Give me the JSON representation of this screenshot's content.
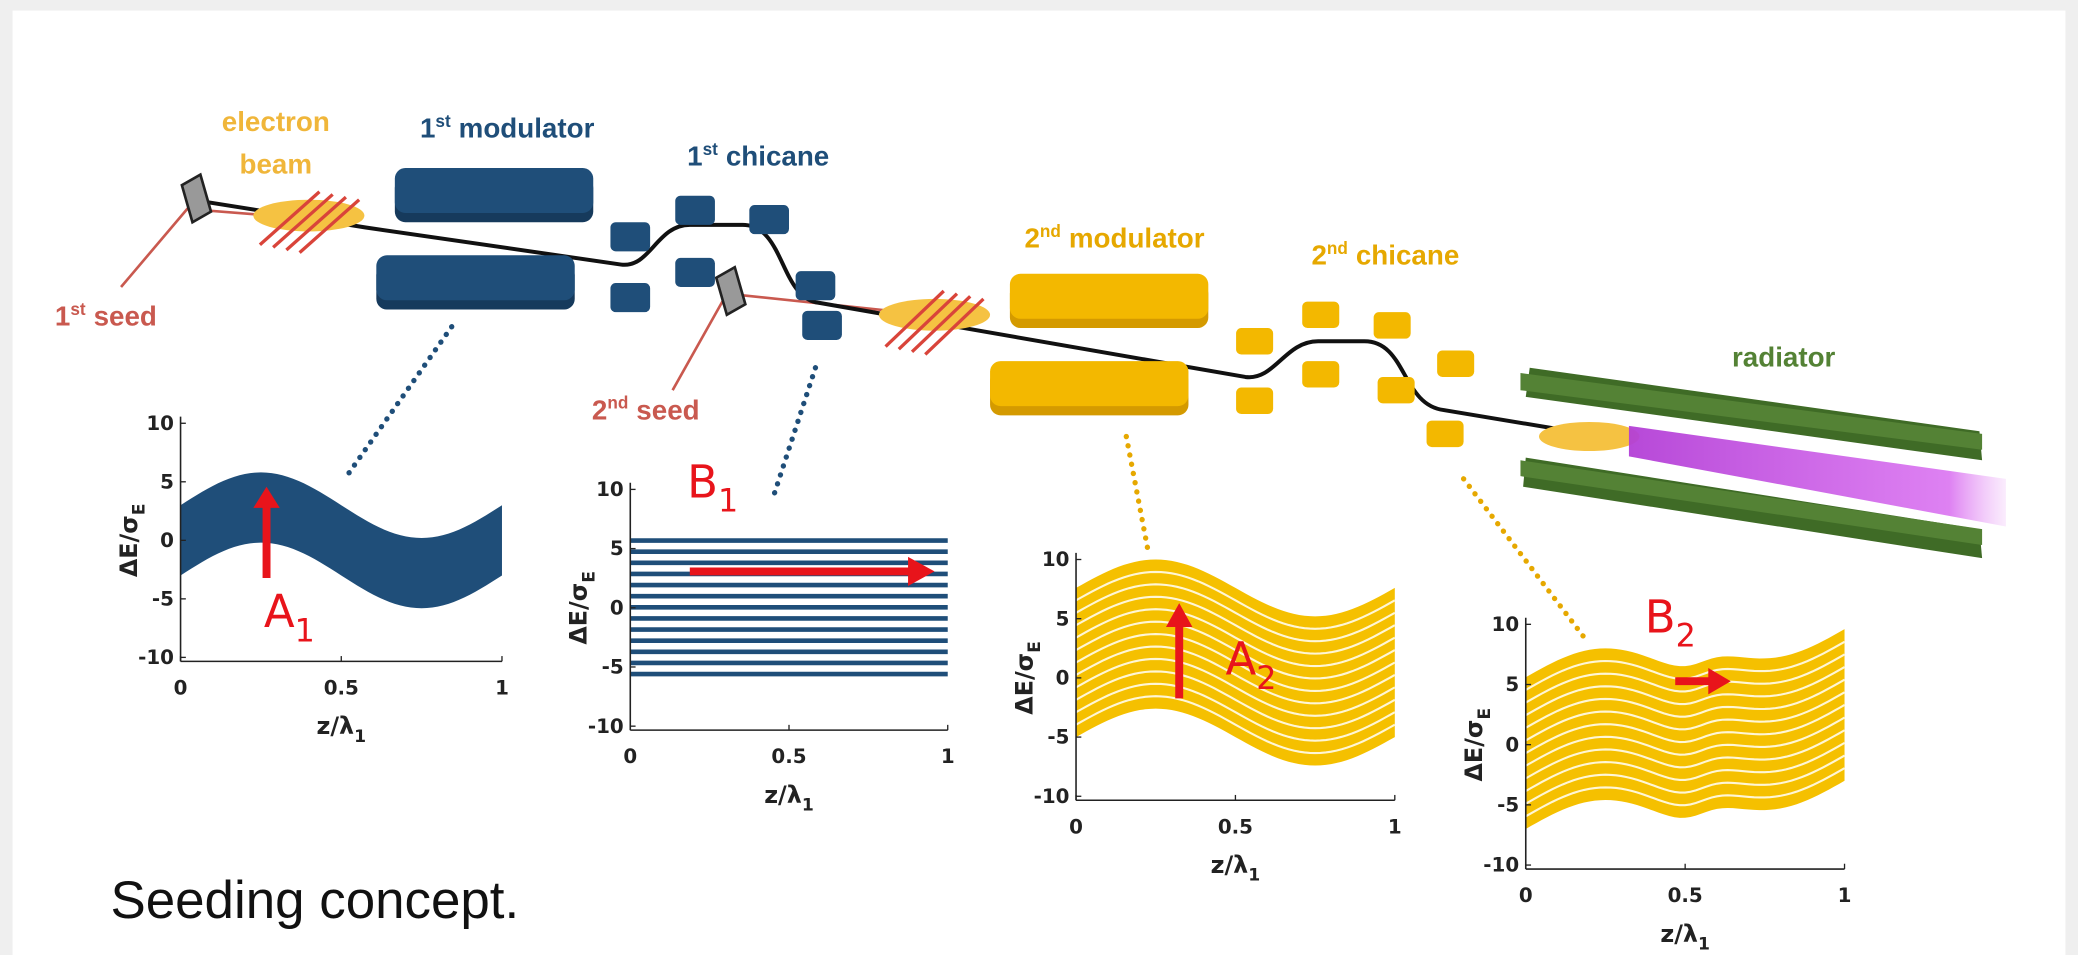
{
  "diagram": {
    "electron_beam": {
      "lines": [
        "electron",
        "beam"
      ]
    },
    "modulator_1": {
      "num": "1",
      "sup": "st",
      "text": "modulator"
    },
    "chicane_1": {
      "num": "1",
      "sup": "st",
      "text": "chicane"
    },
    "seed_1": {
      "num": "1",
      "sup": "st",
      "text": "seed"
    },
    "seed_2": {
      "num": "2",
      "sup": "nd",
      "text": "seed"
    },
    "modulator_2": {
      "num": "2",
      "sup": "nd",
      "text": "modulator"
    },
    "chicane_2": {
      "num": "2",
      "sup": "nd",
      "text": "chicane"
    },
    "radiator": "radiator"
  },
  "plots": [
    {
      "yticks": [
        10,
        5,
        0,
        -5,
        -10
      ],
      "xticks": [
        0,
        0.5,
        1
      ],
      "ylabel": {
        "text": "ΔE/σ",
        "sub": "E"
      },
      "xlabel": {
        "text": "z/λ",
        "sub": "1"
      },
      "annotation": {
        "text": "A",
        "sub": "1"
      }
    },
    {
      "yticks": [
        10,
        5,
        0,
        -5,
        -10
      ],
      "xticks": [
        0,
        0.5,
        1
      ],
      "ylabel": {
        "text": "ΔE/σ",
        "sub": "E"
      },
      "xlabel": {
        "text": "z/λ",
        "sub": "1"
      },
      "annotation": {
        "text": "B",
        "sub": "1"
      }
    },
    {
      "yticks": [
        10,
        5,
        0,
        -5,
        -10
      ],
      "xticks": [
        0,
        0.5,
        1
      ],
      "ylabel": {
        "text": "ΔE/σ",
        "sub": "E"
      },
      "xlabel": {
        "text": "z/λ",
        "sub": "1"
      },
      "annotation": {
        "text": "A",
        "sub": "2"
      }
    },
    {
      "yticks": [
        10,
        5,
        0,
        -5,
        -10
      ],
      "xticks": [
        0,
        0.5,
        1
      ],
      "ylabel": {
        "text": "ΔE/σ",
        "sub": "E"
      },
      "xlabel": {
        "text": "z/λ",
        "sub": "1"
      },
      "annotation": {
        "text": "B",
        "sub": "2"
      }
    }
  ],
  "caption": "Seeding concept."
}
